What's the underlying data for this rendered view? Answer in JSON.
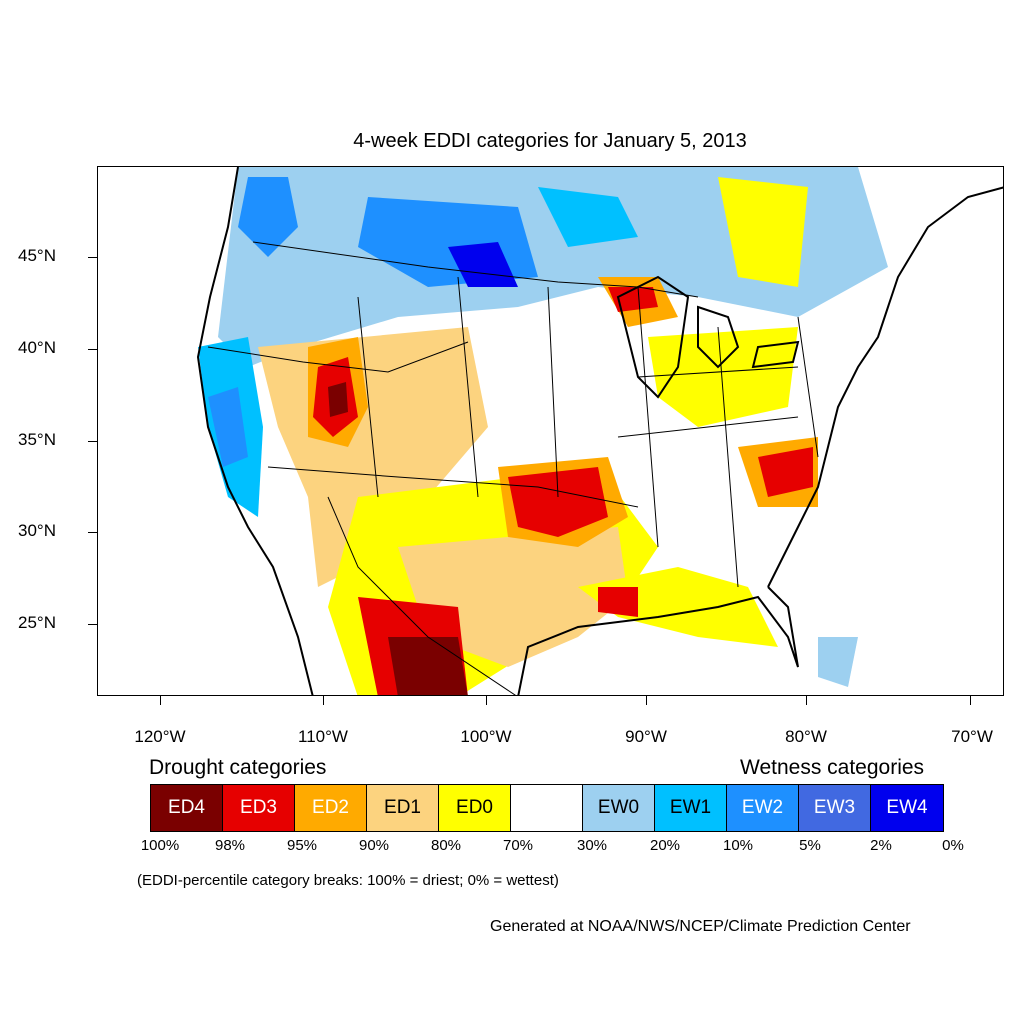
{
  "title": "4-week EDDI categories for January 5, 2013",
  "map": {
    "projection": "Lambert conformal, contiguous United States",
    "lat_ticks": [
      "45°N",
      "40°N",
      "35°N",
      "30°N",
      "25°N"
    ],
    "lon_ticks": [
      "120°W",
      "110°W",
      "100°W",
      "90°W",
      "80°W",
      "70°W"
    ],
    "boundaries": "state and national boundaries, coastlines, Great Lakes"
  },
  "legend": {
    "drought_heading": "Drought categories",
    "wetness_heading": "Wetness categories",
    "categories": [
      {
        "label": "ED4",
        "color": "#7a0000",
        "text_color": "#ffffff"
      },
      {
        "label": "ED3",
        "color": "#e60000",
        "text_color": "#ffffff"
      },
      {
        "label": "ED2",
        "color": "#ffaa00",
        "text_color": "#ffffff"
      },
      {
        "label": "ED1",
        "color": "#fcd37f",
        "text_color": "#000000"
      },
      {
        "label": "ED0",
        "color": "#ffff00",
        "text_color": "#000000"
      },
      {
        "label": "",
        "color": "#ffffff",
        "text_color": "#000000"
      },
      {
        "label": "EW0",
        "color": "#9dd0f0",
        "text_color": "#000000"
      },
      {
        "label": "EW1",
        "color": "#00c0ff",
        "text_color": "#000000"
      },
      {
        "label": "EW2",
        "color": "#1e90ff",
        "text_color": "#ffffff"
      },
      {
        "label": "EW3",
        "color": "#4169e1",
        "text_color": "#ffffff"
      },
      {
        "label": "EW4",
        "color": "#0000ee",
        "text_color": "#ffffff"
      }
    ],
    "breaks": [
      "100%",
      "98%",
      "95%",
      "90%",
      "80%",
      "70%",
      "30%",
      "20%",
      "10%",
      "5%",
      "2%",
      "0%"
    ]
  },
  "note": "(EDDI-percentile category breaks: 100% = driest; 0% = wettest)",
  "credit": "Generated at NOAA/NWS/NCEP/Climate Prediction Center"
}
